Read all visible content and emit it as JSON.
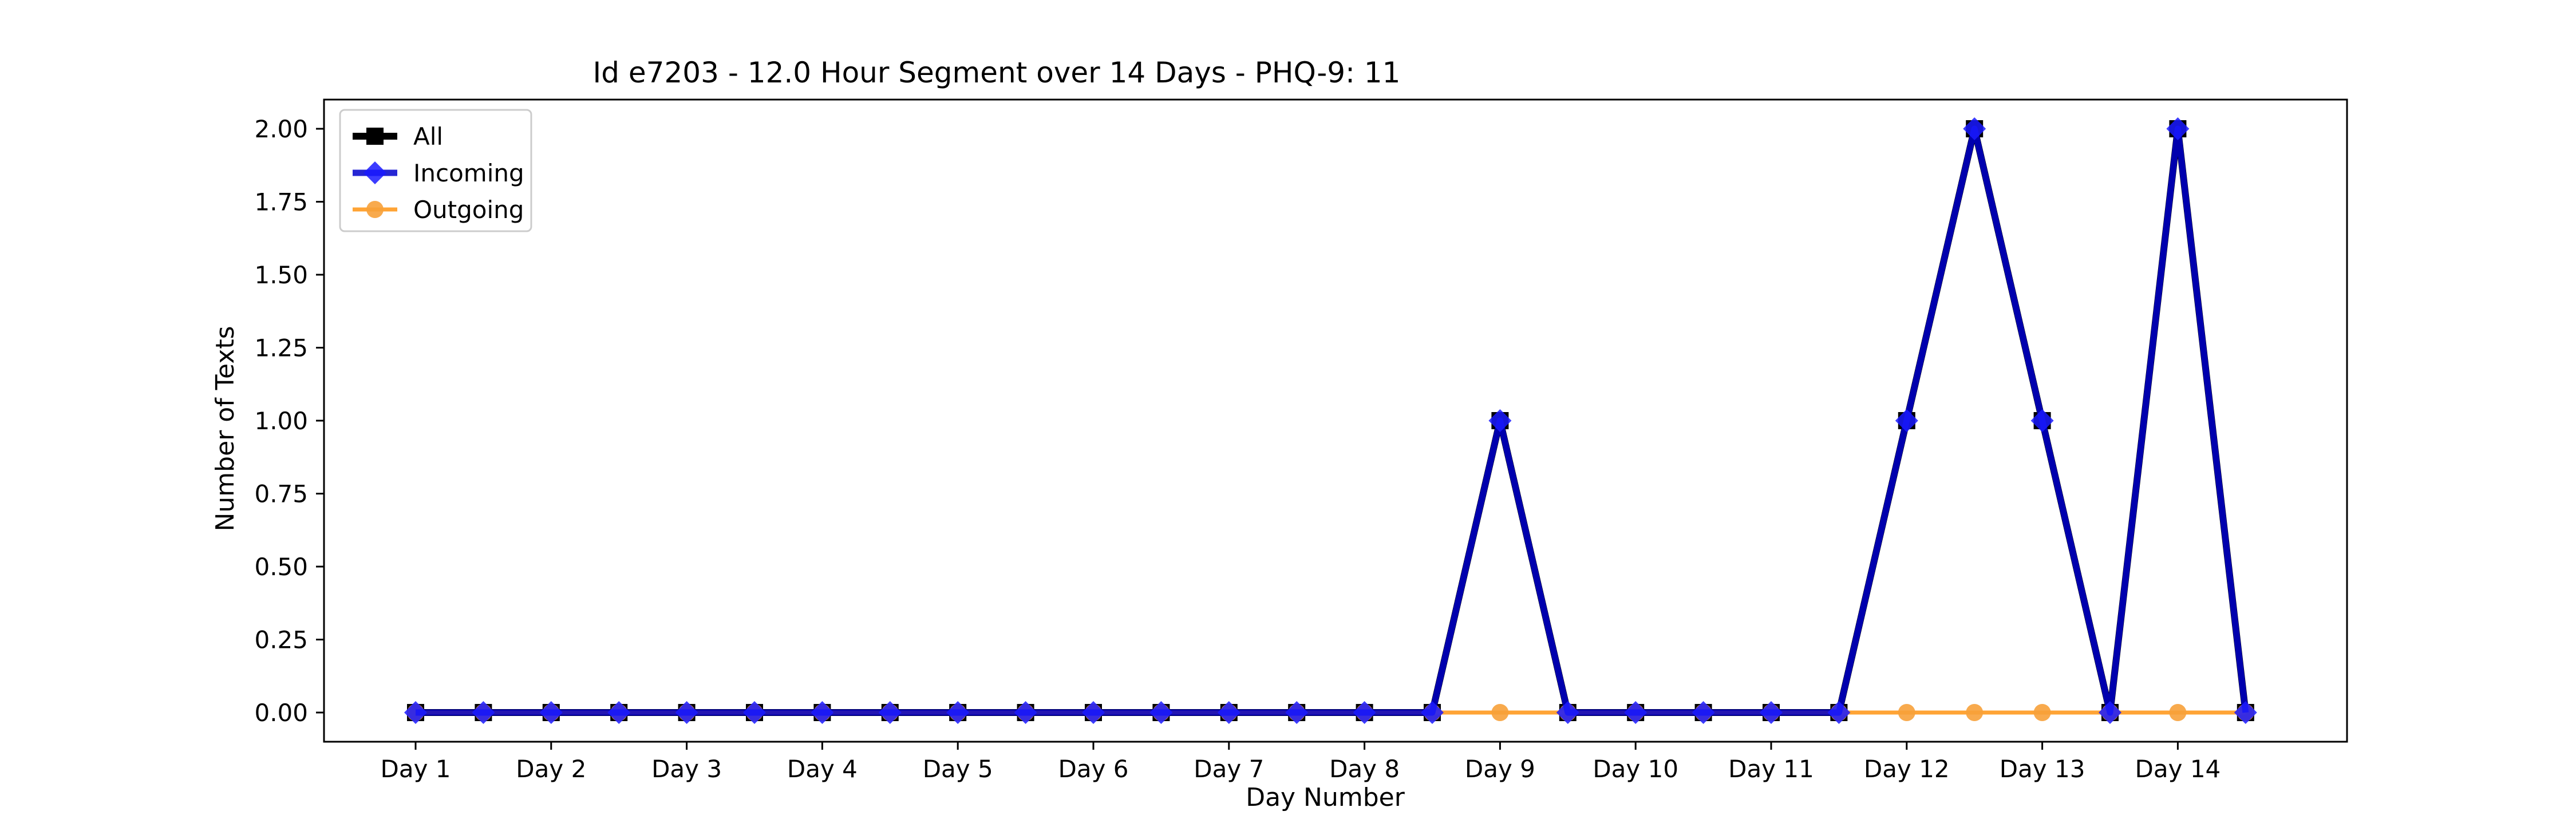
{
  "chart_data": {
    "type": "line",
    "title": "Id e7203 - 12.0 Hour Segment over 14 Days - PHQ-9: 11",
    "xlabel": "Day Number",
    "ylabel": "Number of Texts",
    "x_tick_labels": [
      "Day 1",
      "Day 2",
      "Day 3",
      "Day 4",
      "Day 5",
      "Day 6",
      "Day 7",
      "Day 8",
      "Day 9",
      "Day 10",
      "Day 11",
      "Day 12",
      "Day 13",
      "Day 14"
    ],
    "y_ticks": [
      "0.00",
      "0.25",
      "0.50",
      "0.75",
      "1.00",
      "1.25",
      "1.50",
      "1.75",
      "2.00"
    ],
    "ylim": [
      -0.1,
      2.1
    ],
    "grid": false,
    "legend_position": "top-left",
    "segments": [
      "Day 1",
      "",
      "Day 2",
      "",
      "Day 3",
      "",
      "Day 4",
      "",
      "Day 5",
      "",
      "Day 6",
      "",
      "Day 7",
      "",
      "Day 8",
      "",
      "Day 9",
      "",
      "Day 10",
      "",
      "Day 11",
      "",
      "Day 12",
      "",
      "Day 13",
      "",
      "Day 14",
      ""
    ],
    "series": [
      {
        "name": "All",
        "color": "#000000",
        "marker": "square",
        "values": [
          0,
          0,
          0,
          0,
          0,
          0,
          0,
          0,
          0,
          0,
          0,
          0,
          0,
          0,
          0,
          0,
          1,
          0,
          0,
          0,
          0,
          0,
          1,
          2,
          1,
          0,
          2,
          0
        ]
      },
      {
        "name": "Incoming",
        "color": "#0000ff",
        "marker": "diamond",
        "values": [
          0,
          0,
          0,
          0,
          0,
          0,
          0,
          0,
          0,
          0,
          0,
          0,
          0,
          0,
          0,
          0,
          1,
          0,
          0,
          0,
          0,
          0,
          1,
          2,
          1,
          0,
          2,
          0
        ]
      },
      {
        "name": "Outgoing",
        "color": "#ff9a1f",
        "marker": "circle",
        "values": [
          0,
          0,
          0,
          0,
          0,
          0,
          0,
          0,
          0,
          0,
          0,
          0,
          0,
          0,
          0,
          0,
          0,
          0,
          0,
          0,
          0,
          0,
          0,
          0,
          0,
          0,
          0,
          0
        ]
      }
    ]
  }
}
